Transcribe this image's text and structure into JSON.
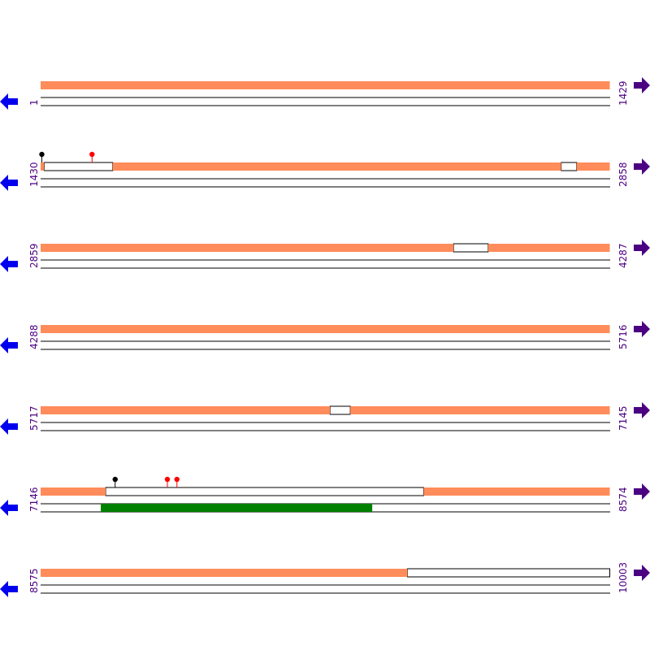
{
  "colors": {
    "feature": "#ff8c5a",
    "orf": "#008000",
    "nav_left": "#0000ee",
    "nav_right": "#4b0082",
    "label": "#4b0082",
    "marker_black": "#000000",
    "marker_red": "#ff0000",
    "line": "#000000"
  },
  "nav": {
    "left_icon": "arrow-left-icon",
    "right_icon": "arrow-right-icon"
  },
  "rows": [
    {
      "start": "1",
      "end": "1429",
      "from": 1,
      "to": 1429,
      "forward_blocks": [
        [
          1,
          1429
        ]
      ],
      "forward_gaps": [],
      "reverse_blocks": [],
      "markers": []
    },
    {
      "start": "1430",
      "end": "2858",
      "from": 1430,
      "to": 2858,
      "forward_blocks": [
        [
          1430,
          1439
        ],
        [
          1611,
          2736
        ],
        [
          2775,
          2858
        ]
      ],
      "forward_gaps": [
        [
          1439,
          1611
        ],
        [
          2736,
          2775
        ]
      ],
      "reverse_blocks": [],
      "markers": [
        {
          "position": 1433,
          "color": "black"
        },
        {
          "position": 1559,
          "color": "red"
        }
      ]
    },
    {
      "start": "2859",
      "end": "4287",
      "from": 2859,
      "to": 4287,
      "forward_blocks": [
        [
          2859,
          3895
        ],
        [
          3982,
          4287
        ]
      ],
      "forward_gaps": [
        [
          3895,
          3982
        ]
      ],
      "reverse_blocks": [],
      "markers": []
    },
    {
      "start": "4288",
      "end": "5716",
      "from": 4288,
      "to": 5716,
      "forward_blocks": [
        [
          4288,
          5716
        ]
      ],
      "forward_gaps": [],
      "reverse_blocks": [],
      "markers": []
    },
    {
      "start": "5717",
      "end": "7145",
      "from": 5717,
      "to": 7145,
      "forward_blocks": [
        [
          5717,
          6443
        ],
        [
          6494,
          7145
        ]
      ],
      "forward_gaps": [
        [
          6443,
          6494
        ]
      ],
      "reverse_blocks": [],
      "markers": []
    },
    {
      "start": "7146",
      "end": "8574",
      "from": 7146,
      "to": 8574,
      "forward_blocks": [
        [
          7146,
          7309
        ],
        [
          8107,
          8574
        ]
      ],
      "forward_gaps": [
        [
          7309,
          8107
        ]
      ],
      "reverse_blocks": [
        [
          7297,
          7978
        ]
      ],
      "markers": [
        {
          "position": 7333,
          "color": "black"
        },
        {
          "position": 7464,
          "color": "red"
        },
        {
          "position": 7488,
          "color": "red"
        }
      ]
    },
    {
      "start": "8575",
      "end": "10003",
      "from": 8575,
      "to": 10003,
      "forward_blocks": [
        [
          8575,
          9495
        ]
      ],
      "forward_gaps": [
        [
          9495,
          10003
        ]
      ],
      "reverse_blocks": [],
      "markers": []
    }
  ]
}
